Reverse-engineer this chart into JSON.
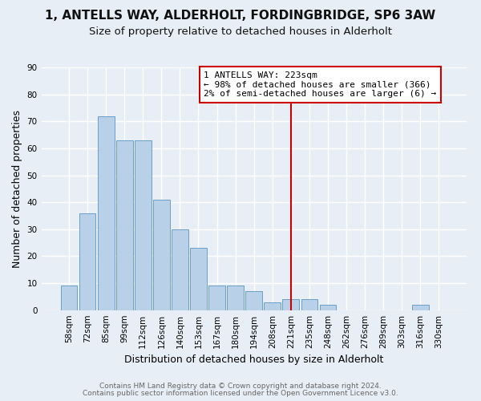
{
  "title": "1, ANTELLS WAY, ALDERHOLT, FORDINGBRIDGE, SP6 3AW",
  "subtitle": "Size of property relative to detached houses in Alderholt",
  "xlabel": "Distribution of detached houses by size in Alderholt",
  "ylabel": "Number of detached properties",
  "bar_color": "#b8d0e8",
  "bar_edge_color": "#6aa0c8",
  "background_color": "#e8eef5",
  "grid_color": "#ffffff",
  "categories": [
    "58sqm",
    "72sqm",
    "85sqm",
    "99sqm",
    "112sqm",
    "126sqm",
    "140sqm",
    "153sqm",
    "167sqm",
    "180sqm",
    "194sqm",
    "208sqm",
    "221sqm",
    "235sqm",
    "248sqm",
    "262sqm",
    "276sqm",
    "289sqm",
    "303sqm",
    "316sqm",
    "330sqm"
  ],
  "values": [
    9,
    36,
    72,
    63,
    63,
    41,
    30,
    23,
    9,
    9,
    7,
    3,
    4,
    4,
    2,
    0,
    0,
    0,
    0,
    2,
    0
  ],
  "vline_x": 12,
  "vline_color": "#cc0000",
  "annotation_title": "1 ANTELLS WAY: 223sqm",
  "annotation_line1": "← 98% of detached houses are smaller (366)",
  "annotation_line2": "2% of semi-detached houses are larger (6) →",
  "annotation_box_color": "#ffffff",
  "annotation_border_color": "#cc0000",
  "ylim": [
    0,
    90
  ],
  "yticks": [
    0,
    10,
    20,
    30,
    40,
    50,
    60,
    70,
    80,
    90
  ],
  "footer1": "Contains HM Land Registry data © Crown copyright and database right 2024.",
  "footer2": "Contains public sector information licensed under the Open Government Licence v3.0.",
  "title_fontsize": 11,
  "subtitle_fontsize": 9.5,
  "axis_label_fontsize": 9,
  "tick_fontsize": 7.5,
  "footer_fontsize": 6.5,
  "annotation_fontsize": 8
}
